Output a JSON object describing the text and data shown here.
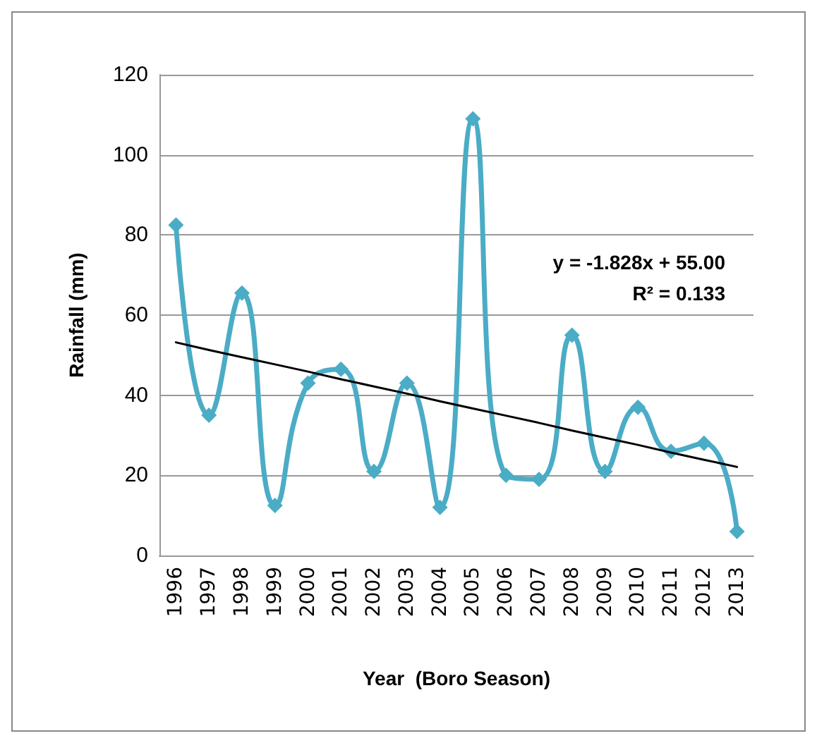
{
  "chart_data": {
    "type": "line",
    "xlabel": "Year  (Boro Season)",
    "ylabel": "Rainfall (mm)",
    "categories": [
      "1996",
      "1997",
      "1998",
      "1999",
      "2000",
      "2001",
      "2002",
      "2003",
      "2004",
      "2005",
      "2006",
      "2007",
      "2008",
      "2009",
      "2010",
      "2011",
      "2012",
      "2013"
    ],
    "series": [
      {
        "color": "#4bacc6",
        "values": [
          82.5,
          35,
          65.5,
          12.5,
          43,
          46.5,
          21,
          43,
          12,
          109,
          20,
          19,
          55,
          21,
          37,
          26,
          28,
          6
        ],
        "marker": "diamond"
      },
      {
        "type": "line",
        "color": "#000000",
        "values": [
          53.2,
          51.3,
          49.5,
          47.7,
          45.9,
          44.0,
          42.2,
          40.4,
          38.5,
          36.7,
          34.9,
          33.1,
          31.2,
          29.4,
          27.6,
          25.7,
          23.9,
          22.1
        ],
        "marker": "none"
      }
    ],
    "ylim": [
      0,
      120
    ],
    "yticks": [
      0,
      20,
      40,
      60,
      80,
      100,
      120
    ],
    "grid": "y",
    "annotations": [
      "y = -1.828x + 55.00",
      "R² = 0.133"
    ]
  }
}
